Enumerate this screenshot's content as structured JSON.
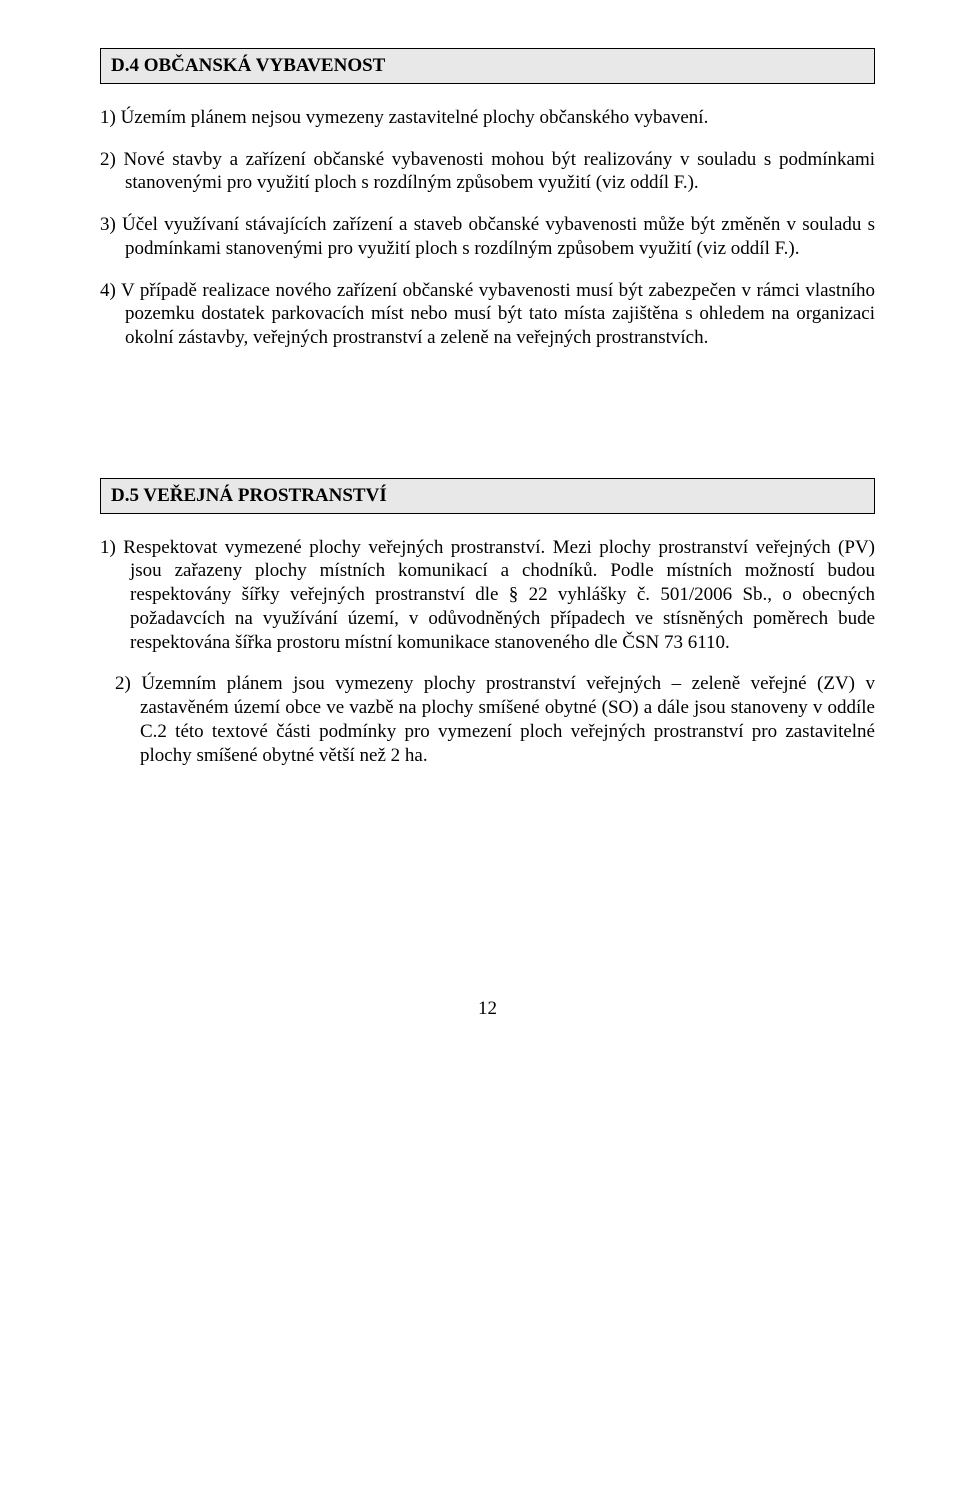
{
  "sectionD4": {
    "heading": "D.4 OBČANSKÁ VYBAVENOST",
    "p1": "1) Územím plánem nejsou vymezeny zastavitelné plochy občanského vybavení.",
    "p2": "2) Nové stavby a zařízení občanské vybavenosti mohou být realizovány v souladu s podmínkami stanovenými pro využití ploch s rozdílným způsobem využití (viz oddíl F.).",
    "p3": "3) Účel využívaní stávajících zařízení a staveb občanské vybavenosti může být změněn v souladu s podmínkami stanovenými pro využití ploch s rozdílným způsobem využití (viz oddíl F.).",
    "p4": "4) V případě realizace nového zařízení občanské vybavenosti musí být zabezpečen v rámci vlastního pozemku dostatek parkovacích míst nebo musí být tato místa zajištěna s ohledem na organizaci okolní zástavby, veřejných prostranství a zeleně na veřejných prostranstvích."
  },
  "sectionD5": {
    "heading": "D.5   VEŘEJNÁ PROSTRANSTVÍ",
    "p1": "1)  Respektovat vymezené plochy veřejných prostranství. Mezi plochy prostranství veřejných (PV) jsou zařazeny plochy místních komunikací  a chodníků.   Podle   místních   možností budou  respektovány  šířky  veřejných  prostranství  dle  § 22  vyhlášky  č.  501/2006  Sb., o obecných požadavcích na využívání území, v odůvodněných případech ve stísněných poměrech  bude  respektována  šířka  prostoru  místní  komunikace  stanoveného  dle ČSN 73 6110.",
    "p2": "2) Územním plánem jsou vymezeny plochy prostranství veřejných – zeleně veřejné (ZV) v zastavěném území obce ve vazbě na plochy smíšené obytné (SO) a dále jsou stanoveny v oddíle C.2 této textové části podmínky pro vymezení ploch veřejných prostranství pro zastavitelné plochy smíšené obytné větší než 2 ha."
  },
  "pageNumber": "12"
}
